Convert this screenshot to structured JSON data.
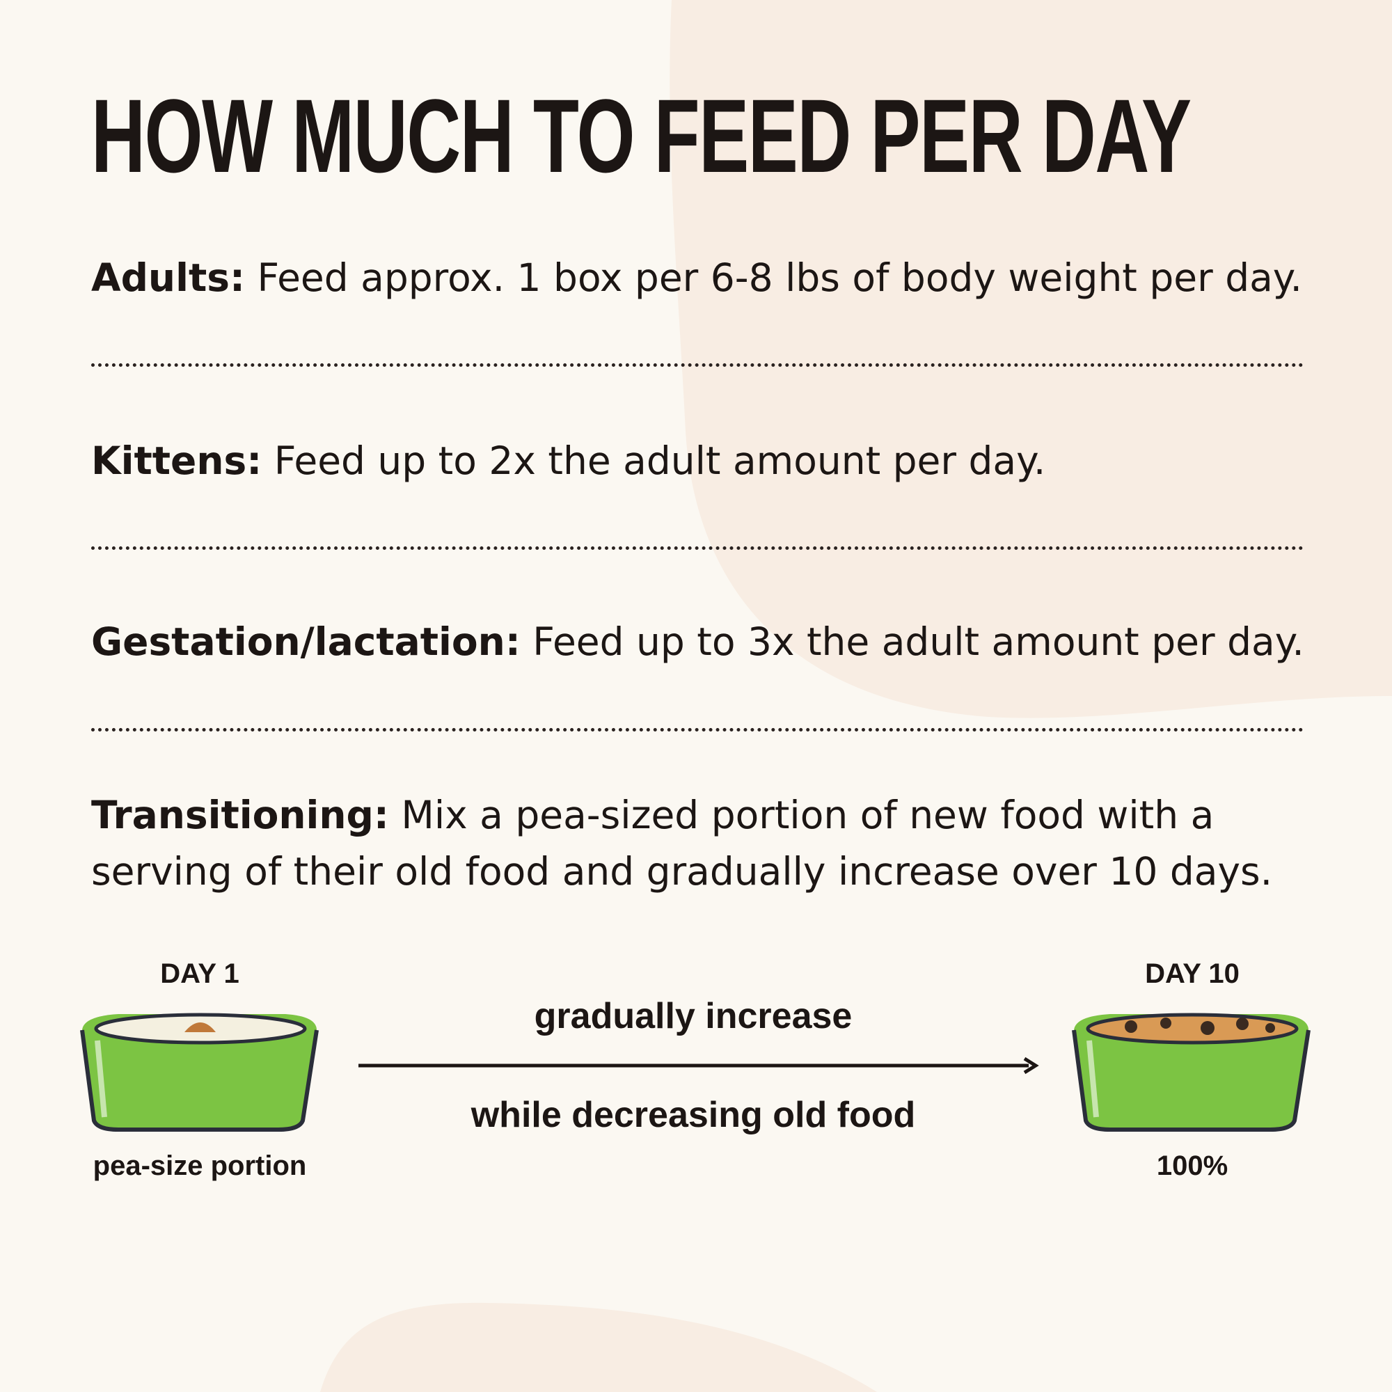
{
  "title": "HOW MUCH TO FEED PER DAY",
  "rows": [
    {
      "label": "Adults:",
      "text": " Feed approx. 1 box per 6-8 lbs of body weight per day."
    },
    {
      "label": "Kittens:",
      "text": " Feed up to 2x the adult amount per day."
    },
    {
      "label": "Gestation/lactation:",
      "text": " Feed up to 3x the adult amount per day."
    },
    {
      "label": "Transitioning:",
      "text": " Mix a pea-sized portion of new food with a",
      "text2": "serving of their old food and gradually increase over 10 days."
    }
  ],
  "transition": {
    "start_label": "DAY 1",
    "start_caption": "pea-size portion",
    "end_label": "DAY 10",
    "end_caption": "100%",
    "arrow_top": "gradually increase",
    "arrow_bottom": "while decreasing old food"
  },
  "colors": {
    "background": "#fbf8f2",
    "blob": "#f8ede3",
    "bowl": "#7cc443",
    "text": "#1c1614"
  }
}
